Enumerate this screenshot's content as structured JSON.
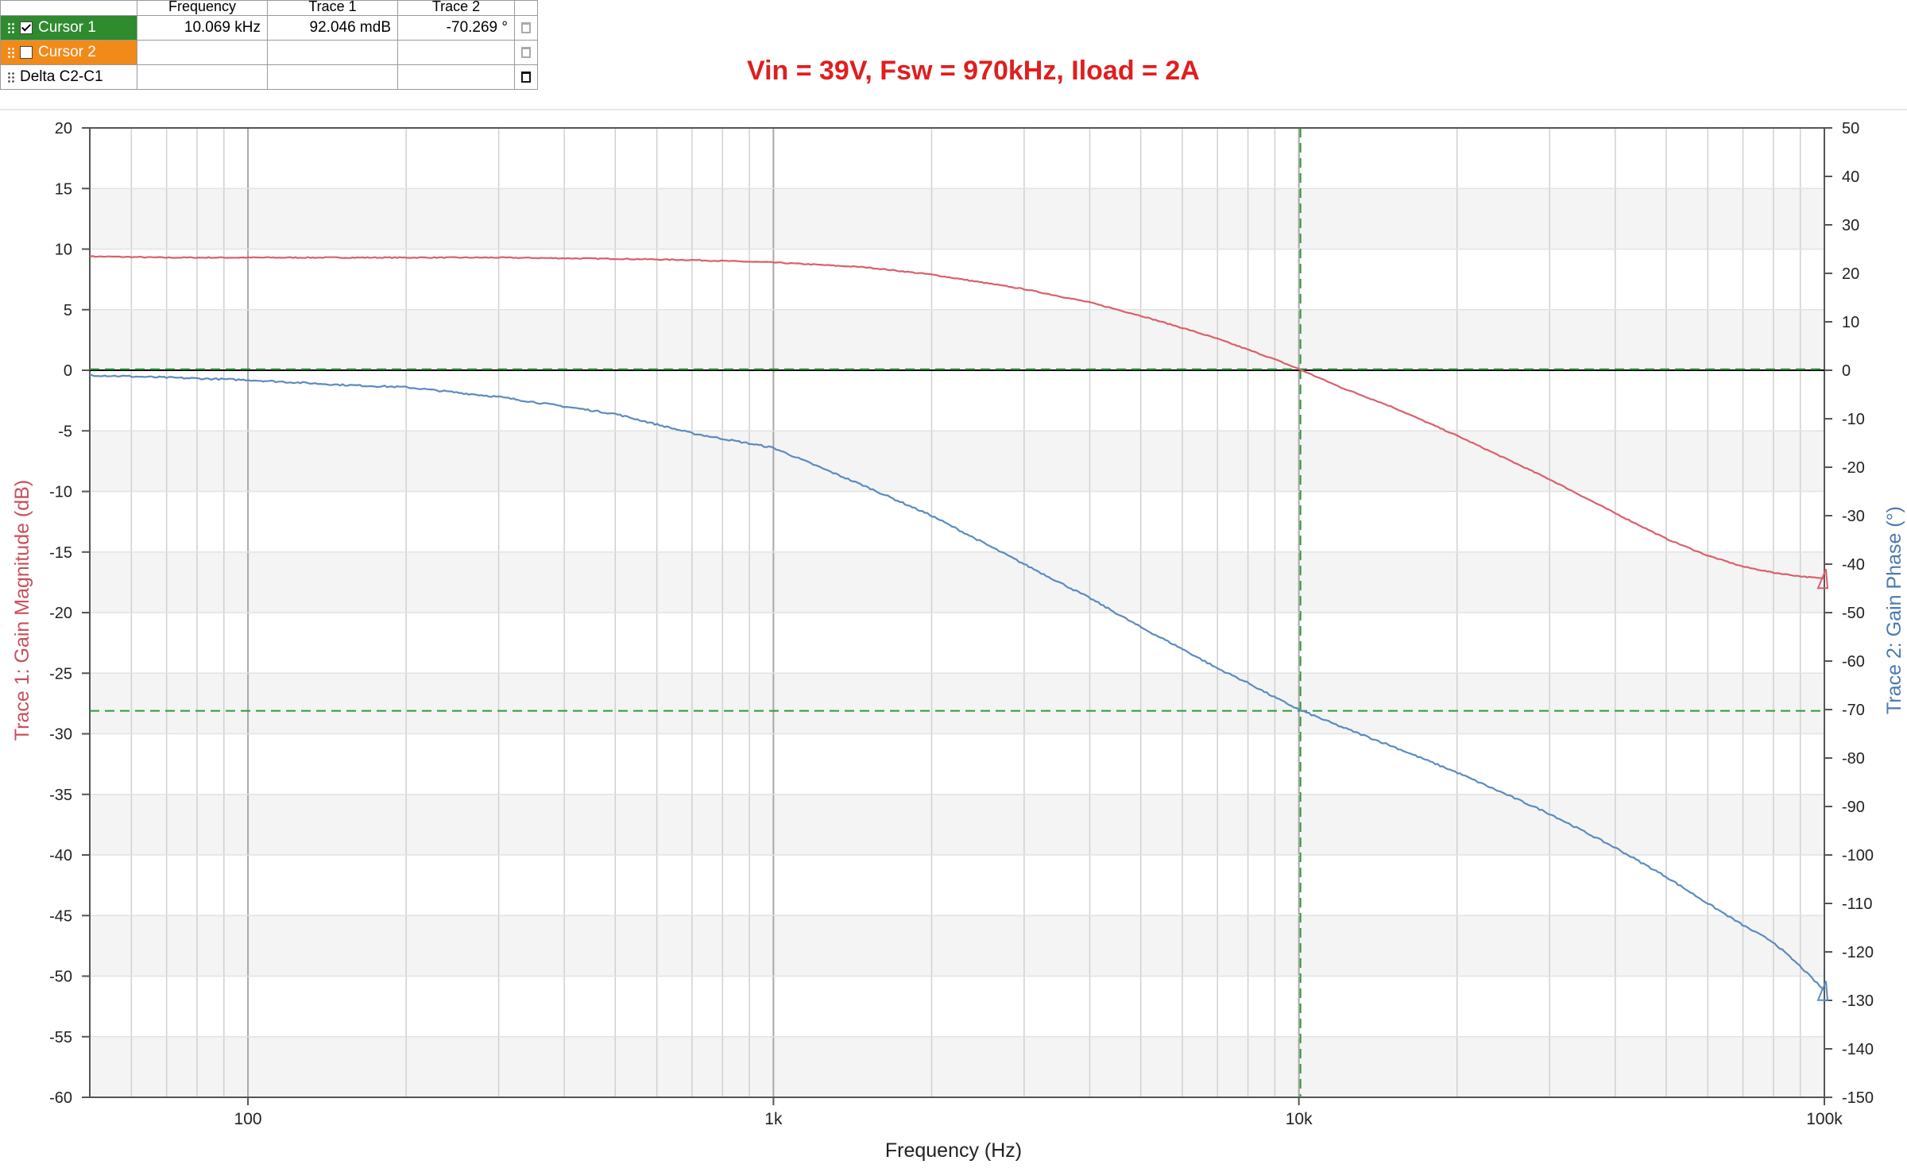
{
  "cursor_table": {
    "headers": [
      "Frequency",
      "Trace 1",
      "Trace 2"
    ],
    "rows": [
      {
        "name": "Cursor 1",
        "checked": true,
        "color": "#2e8b2e",
        "frequency": "10.069 kHz",
        "trace1": "92.046 mdB",
        "trace2": "-70.269 °",
        "delete_icon": "trash-icon"
      },
      {
        "name": "Cursor 2",
        "checked": false,
        "color": "#f28a1a",
        "frequency": "",
        "trace1": "",
        "trace2": "",
        "delete_icon": "trash-icon"
      },
      {
        "name": "Delta C2-C1",
        "frequency": "",
        "trace1": "",
        "trace2": "",
        "delete_icon": "trash-icon"
      }
    ]
  },
  "title": "Vin = 39V, Fsw = 970kHz, Iload = 2A",
  "chart_data": {
    "type": "line",
    "title": "Vin = 39V, Fsw = 970kHz, Iload = 2A",
    "xlabel": "Frequency (Hz)",
    "ylabel_left": "Trace 1: Gain Magnitude (dB)",
    "ylabel_right": "Trace 2: Gain Phase (°)",
    "x_scale": "log",
    "xlim": [
      50,
      100000
    ],
    "x_ticks": [
      100,
      1000,
      10000,
      100000
    ],
    "x_tick_labels": [
      "100",
      "1k",
      "10k",
      "100k"
    ],
    "ylim_left": [
      -60,
      20
    ],
    "ylim_right": [
      -150,
      50
    ],
    "y_ticks_left": [
      "20",
      "15",
      "10",
      "5",
      "0",
      "-5",
      "-10",
      "-15",
      "-20",
      "-25",
      "-30",
      "-35",
      "-40",
      "-45",
      "-50",
      "-55",
      "-60"
    ],
    "y_ticks_right": [
      "50",
      "40",
      "30",
      "20",
      "10",
      "0",
      "-10",
      "-20",
      "-30",
      "-40",
      "-50",
      "-60",
      "-70",
      "-80",
      "-90",
      "-100",
      "-110",
      "-120",
      "-130",
      "-140",
      "-150"
    ],
    "grid": true,
    "series": [
      {
        "name": "Trace 1",
        "axis": "left",
        "color": "#d9606c",
        "x": [
          50,
          70,
          100,
          150,
          200,
          300,
          500,
          700,
          1000,
          1500,
          2000,
          3000,
          4000,
          5000,
          6000,
          7000,
          8000,
          9000,
          10000,
          12000,
          15000,
          20000,
          30000,
          40000,
          50000,
          60000,
          70000,
          80000,
          90000,
          100000
        ],
        "y": [
          9.4,
          9.3,
          9.3,
          9.3,
          9.3,
          9.3,
          9.2,
          9.1,
          8.9,
          8.5,
          7.9,
          6.7,
          5.6,
          4.5,
          3.5,
          2.6,
          1.7,
          0.9,
          0.1,
          -1.4,
          -3.0,
          -5.4,
          -9.0,
          -11.8,
          -13.9,
          -15.3,
          -16.2,
          -16.7,
          -17.0,
          -17.2
        ]
      },
      {
        "name": "Trace 2",
        "axis": "right",
        "color": "#5b8bbf",
        "x": [
          50,
          70,
          100,
          150,
          200,
          300,
          500,
          700,
          1000,
          1500,
          2000,
          3000,
          4000,
          5000,
          6000,
          7000,
          8000,
          9000,
          10000,
          12000,
          15000,
          20000,
          30000,
          40000,
          50000,
          60000,
          70000,
          80000,
          90000,
          100000
        ],
        "y": [
          -1.0,
          -1.5,
          -2.0,
          -3.0,
          -3.5,
          -5.5,
          -9.0,
          -13.0,
          -16.0,
          -24.0,
          -30.0,
          -40.0,
          -47.0,
          -53.0,
          -57.5,
          -61.5,
          -64.5,
          -67.5,
          -70.0,
          -73.5,
          -77.5,
          -83.0,
          -91.5,
          -98.5,
          -104.5,
          -110.0,
          -114.5,
          -118.0,
          -123.0,
          -128.0
        ]
      }
    ],
    "cursors": {
      "cursor1_x": 10069,
      "magnitude_db": 0.092,
      "phase_deg": -70.269
    }
  }
}
